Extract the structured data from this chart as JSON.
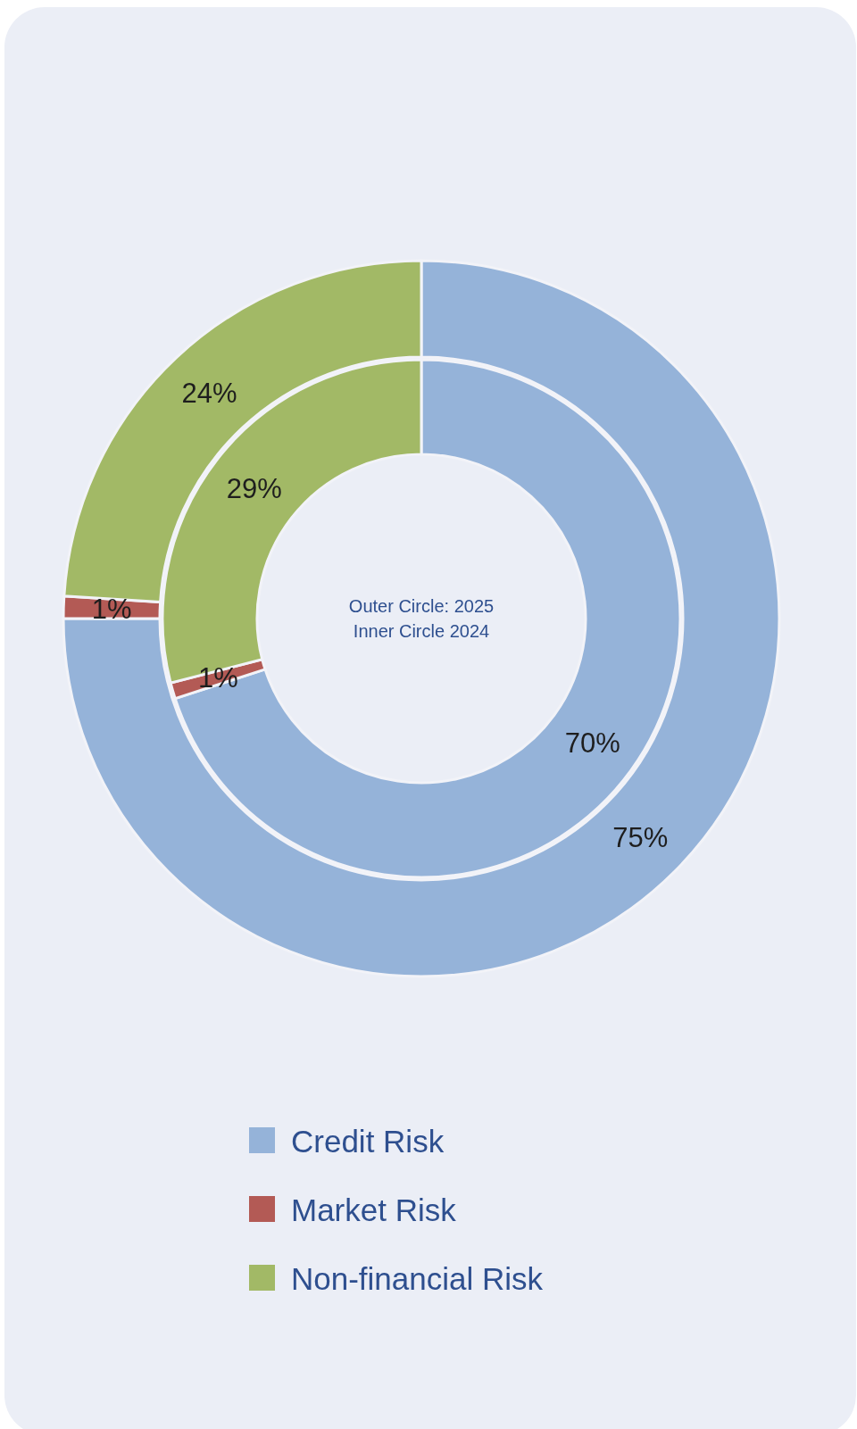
{
  "chart_data": {
    "type": "donut",
    "categories": [
      "Credit Risk",
      "Market Risk",
      "Non-financial Risk"
    ],
    "colors": [
      "#95b3d9",
      "#b35a55",
      "#a2b966"
    ],
    "series": [
      {
        "values": [
          75,
          1,
          24
        ],
        "value_labels": [
          "75%",
          "1%",
          "24%"
        ]
      },
      {
        "values": [
          70,
          1,
          29
        ],
        "value_labels": [
          "70%",
          "1%",
          "29%"
        ]
      }
    ],
    "annotations": [
      "Outer Circle: 2025",
      "Inner Circle 2024"
    ],
    "legend": "bottom"
  }
}
